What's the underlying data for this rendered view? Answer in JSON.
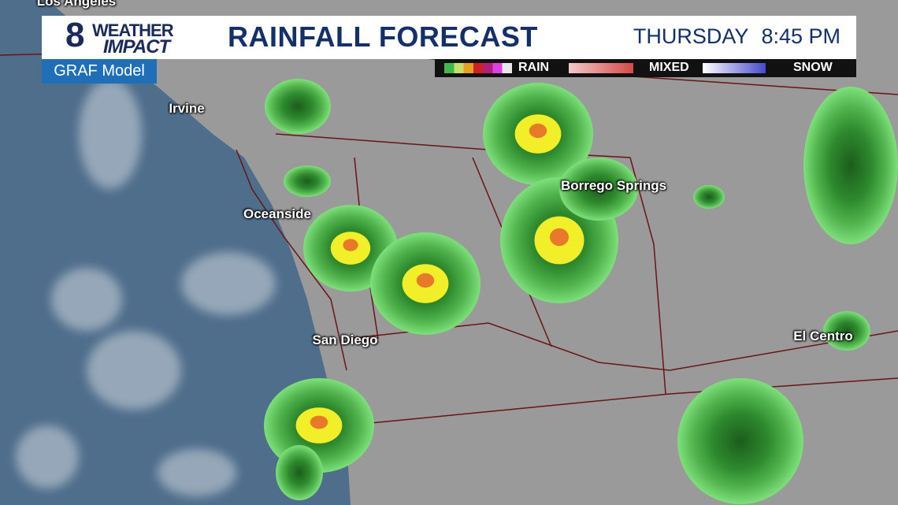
{
  "header": {
    "brand": {
      "number": "8",
      "line1": "WEATHER",
      "line2": "IMPACT"
    },
    "title": "RAINFALL FORECAST",
    "day": "THURSDAY",
    "time": "8:45 PM",
    "model": "GRAF Model"
  },
  "legend": {
    "items": [
      {
        "label": "RAIN",
        "colors": [
          "#3dbb4a",
          "#c8e06a",
          "#e6a020",
          "#d02020",
          "#b0207a",
          "#e040e0",
          "#e8e8e8"
        ]
      },
      {
        "label": "MIXED",
        "colors": [
          "#f3c8c8",
          "#d84848"
        ]
      },
      {
        "label": "SNOW",
        "colors": [
          "#ffffff",
          "#4848d0"
        ]
      }
    ]
  },
  "cities": [
    "Los Angeles",
    "Irvine",
    "Oceanside",
    "San Diego",
    "Borrego Springs",
    "El Centro"
  ],
  "colors": {
    "ocean": "#4f6e8c",
    "land": "#9a9a9a",
    "roads": "#6a1414",
    "light_rain": "#7ee07a",
    "moderate_rain": "#2e8a2e",
    "heavy_rain": "#f2ee28",
    "very_heavy": "#e8782a",
    "brand_navy": "#13306a",
    "model_blue": "#1f6fb8"
  }
}
